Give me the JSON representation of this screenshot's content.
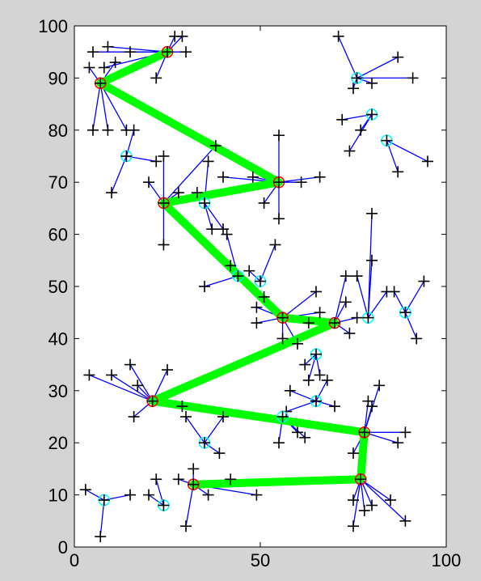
{
  "chart_data": {
    "type": "scatter",
    "title": "",
    "xlabel": "",
    "ylabel": "",
    "xlim": [
      0,
      100
    ],
    "ylim": [
      0,
      100
    ],
    "grid": false,
    "x_ticks": [
      "0",
      "50",
      "100"
    ],
    "y_ticks": [
      "0",
      "10",
      "20",
      "30",
      "40",
      "50",
      "60",
      "70",
      "80",
      "90",
      "100"
    ],
    "colors": {
      "background": "#d4d4d4",
      "axes_face": "#ffffff",
      "link": "#0000ff",
      "node_marker": "#000000",
      "cluster_head": "#ff0000",
      "relay_node": "#00ffff",
      "route": "#00ff00"
    },
    "cluster_heads": [
      {
        "x": 25,
        "y": 95,
        "members": [
          [
            5,
            95
          ],
          [
            9,
            96
          ],
          [
            15,
            95
          ],
          [
            8,
            92
          ],
          [
            30,
            95
          ],
          [
            29,
            98
          ],
          [
            22,
            90
          ],
          [
            27,
            98
          ]
        ]
      },
      {
        "x": 7,
        "y": 89,
        "members": [
          [
            5,
            80
          ],
          [
            9,
            80
          ],
          [
            4,
            92
          ],
          [
            11,
            93
          ],
          [
            14,
            80
          ]
        ]
      },
      {
        "x": 55,
        "y": 70,
        "members": [
          [
            55,
            79
          ],
          [
            55,
            63
          ],
          [
            51,
            66
          ],
          [
            48,
            71
          ],
          [
            40,
            71
          ],
          [
            61,
            70
          ],
          [
            66,
            71
          ]
        ]
      },
      {
        "x": 24,
        "y": 66,
        "members": [
          [
            24,
            58
          ],
          [
            24,
            75
          ],
          [
            28,
            68
          ],
          [
            33,
            68
          ],
          [
            20,
            70
          ],
          [
            38,
            77
          ]
        ]
      },
      {
        "x": 70,
        "y": 43,
        "members": [
          [
            73,
            47
          ],
          [
            74,
            41
          ],
          [
            76,
            44
          ],
          [
            73,
            52
          ]
        ]
      },
      {
        "x": 56,
        "y": 44,
        "members": [
          [
            49,
            43
          ],
          [
            49,
            46
          ],
          [
            51,
            48
          ],
          [
            65,
            49
          ],
          [
            60,
            39
          ],
          [
            66,
            45
          ],
          [
            56,
            40
          ],
          [
            63,
            43
          ]
        ]
      },
      {
        "x": 21,
        "y": 28,
        "members": [
          [
            4,
            33
          ],
          [
            10,
            33
          ],
          [
            15,
            35
          ],
          [
            17,
            31
          ],
          [
            16,
            25
          ],
          [
            25,
            34
          ],
          [
            29,
            27
          ]
        ]
      },
      {
        "x": 78,
        "y": 22,
        "members": [
          [
            82,
            31
          ],
          [
            89,
            22
          ],
          [
            87,
            20
          ],
          [
            79,
            28
          ],
          [
            75,
            18
          ],
          [
            80,
            27
          ]
        ]
      },
      {
        "x": 77,
        "y": 13,
        "members": [
          [
            75,
            4
          ],
          [
            80,
            8
          ],
          [
            85,
            9
          ],
          [
            89,
            5
          ],
          [
            78,
            7
          ],
          [
            75,
            9
          ]
        ]
      },
      {
        "x": 32,
        "y": 12,
        "members": [
          [
            30,
            4
          ],
          [
            28,
            13
          ],
          [
            36,
            10
          ],
          [
            42,
            13
          ],
          [
            49,
            10
          ],
          [
            32,
            15
          ]
        ]
      }
    ],
    "relay_nodes": [
      {
        "x": 14,
        "y": 75,
        "members": [
          [
            10,
            68
          ],
          [
            16,
            80
          ],
          [
            22,
            74
          ]
        ]
      },
      {
        "x": 76,
        "y": 90,
        "members": [
          [
            71,
            98
          ],
          [
            75,
            88
          ],
          [
            87,
            94
          ],
          [
            80,
            89
          ],
          [
            91,
            90
          ]
        ]
      },
      {
        "x": 80,
        "y": 83,
        "members": [
          [
            77,
            80
          ],
          [
            72,
            82
          ],
          [
            74,
            76
          ]
        ]
      },
      {
        "x": 84,
        "y": 78,
        "members": [
          [
            87,
            72
          ],
          [
            95,
            74
          ]
        ]
      },
      {
        "x": 35,
        "y": 66,
        "members": [
          [
            37,
            61
          ],
          [
            40,
            61
          ],
          [
            36,
            74
          ]
        ]
      },
      {
        "x": 44,
        "y": 52,
        "members": [
          [
            35,
            50
          ],
          [
            41,
            60
          ],
          [
            42,
            54
          ]
        ]
      },
      {
        "x": 50,
        "y": 51,
        "members": [
          [
            54,
            58
          ],
          [
            47,
            53
          ]
        ]
      },
      {
        "x": 79,
        "y": 44,
        "members": [
          [
            80,
            55
          ],
          [
            80,
            64
          ],
          [
            76,
            52
          ],
          [
            84,
            49
          ]
        ]
      },
      {
        "x": 89,
        "y": 45,
        "members": [
          [
            94,
            51
          ],
          [
            92,
            40
          ],
          [
            86,
            49
          ]
        ]
      },
      {
        "x": 65,
        "y": 37,
        "members": [
          [
            62,
            35
          ],
          [
            66,
            33
          ],
          [
            63,
            32
          ]
        ]
      },
      {
        "x": 65,
        "y": 28,
        "members": [
          [
            57,
            26
          ],
          [
            58,
            30
          ],
          [
            68,
            32
          ],
          [
            70,
            27
          ]
        ]
      },
      {
        "x": 56,
        "y": 25,
        "members": [
          [
            55,
            20
          ],
          [
            62,
            21
          ],
          [
            60,
            22
          ]
        ]
      },
      {
        "x": 35,
        "y": 20,
        "members": [
          [
            30,
            25
          ],
          [
            40,
            25
          ],
          [
            39,
            18
          ]
        ]
      },
      {
        "x": 8,
        "y": 9,
        "members": [
          [
            3,
            11
          ],
          [
            7,
            2
          ],
          [
            15,
            10
          ]
        ]
      },
      {
        "x": 24,
        "y": 8,
        "members": [
          [
            22,
            13
          ],
          [
            20,
            10
          ]
        ]
      }
    ],
    "route": [
      [
        25,
        95
      ],
      [
        7,
        89
      ],
      [
        55,
        70
      ],
      [
        24,
        66
      ],
      [
        56,
        44
      ],
      [
        70,
        43
      ],
      [
        21,
        28
      ],
      [
        78,
        22
      ],
      [
        77,
        13
      ],
      [
        32,
        12
      ]
    ]
  }
}
